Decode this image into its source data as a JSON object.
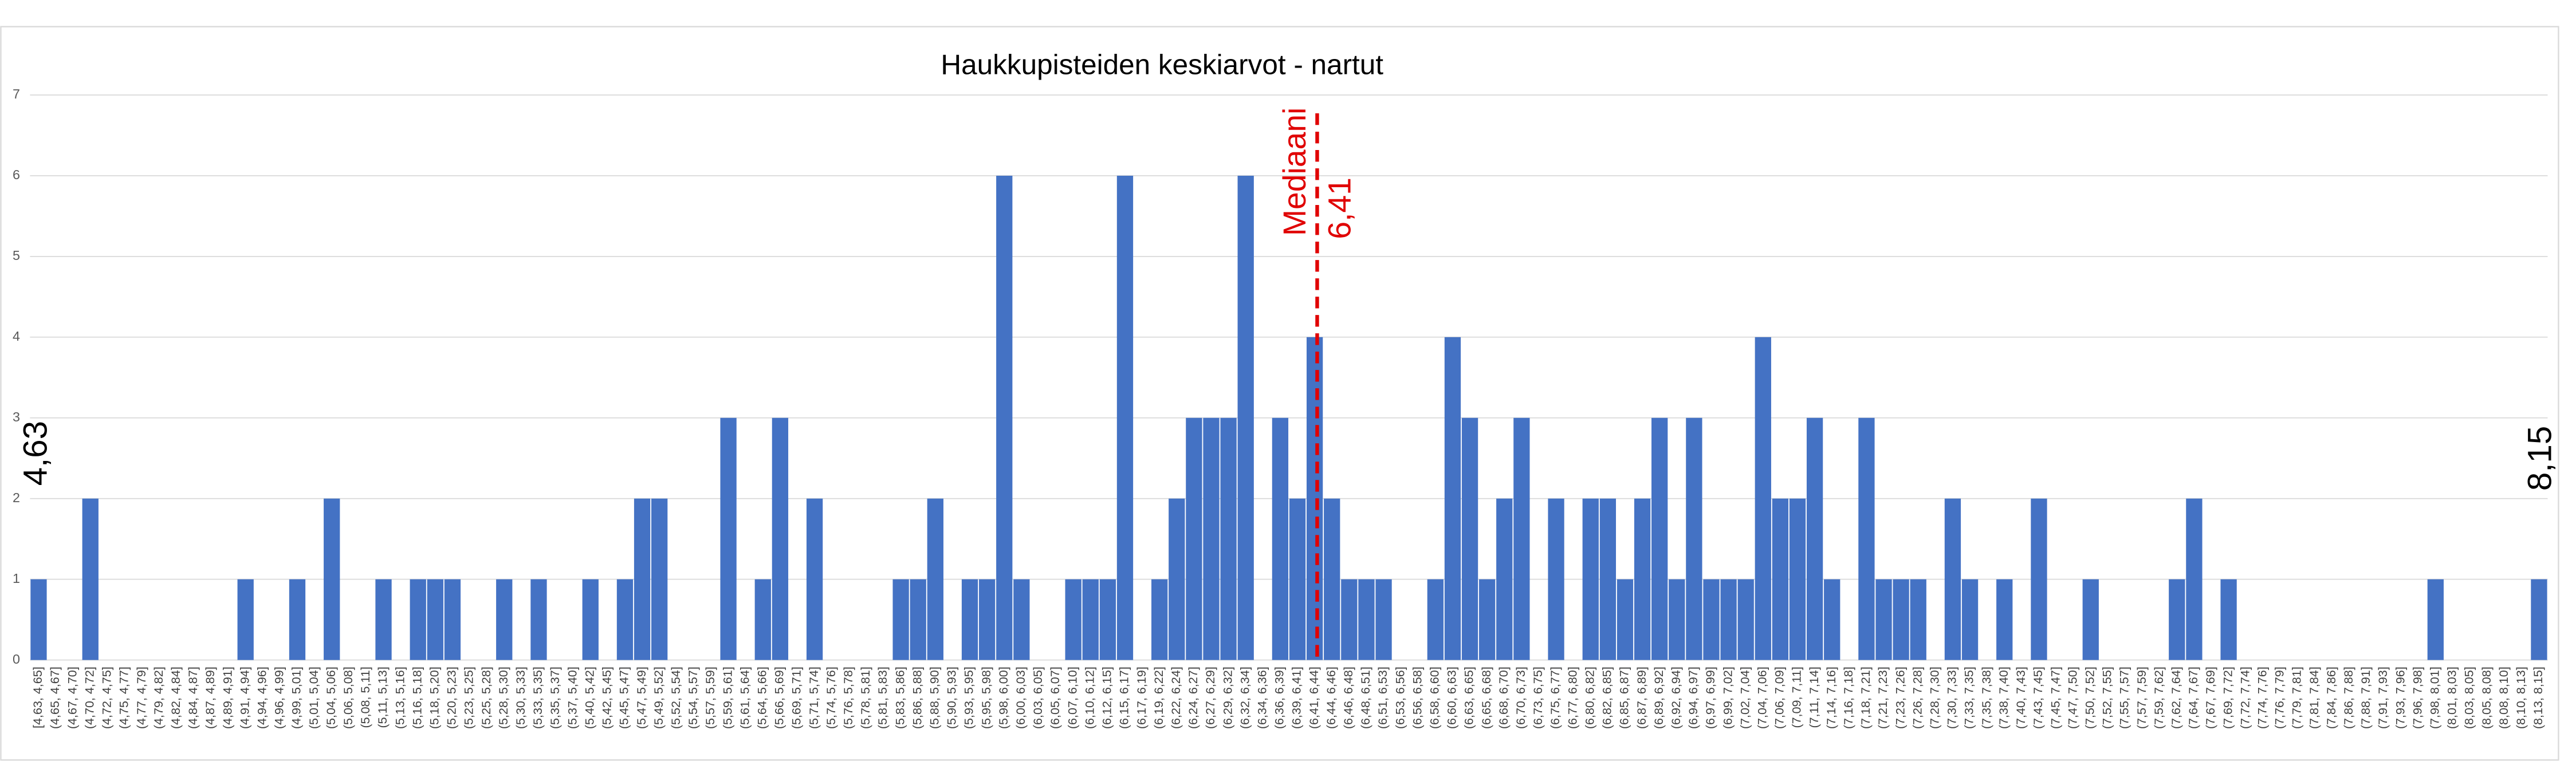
{
  "chart_data": {
    "type": "bar",
    "title": "Haukkupisteiden keskiarvot - nartut",
    "categories": [
      "[4,63, 4,65]",
      "(4,65, 4,67]",
      "(4,67, 4,70]",
      "(4,70, 4,72]",
      "(4,72, 4,75]",
      "(4,75, 4,77]",
      "(4,77, 4,79]",
      "(4,79, 4,82]",
      "(4,82, 4,84]",
      "(4,84, 4,87]",
      "(4,87, 4,89]",
      "(4,89, 4,91]",
      "(4,91, 4,94]",
      "(4,94, 4,96]",
      "(4,96, 4,99]",
      "(4,99, 5,01]",
      "(5,01, 5,04]",
      "(5,04, 5,06]",
      "(5,06, 5,08]",
      "(5,08, 5,11]",
      "(5,11, 5,13]",
      "(5,13, 5,16]",
      "(5,16, 5,18]",
      "(5,18, 5,20]",
      "(5,20, 5,23]",
      "(5,23, 5,25]",
      "(5,25, 5,28]",
      "(5,28, 5,30]",
      "(5,30, 5,33]",
      "(5,33, 5,35]",
      "(5,35, 5,37]",
      "(5,37, 5,40]",
      "(5,40, 5,42]",
      "(5,42, 5,45]",
      "(5,45, 5,47]",
      "(5,47, 5,49]",
      "(5,49, 5,52]",
      "(5,52, 5,54]",
      "(5,54, 5,57]",
      "(5,57, 5,59]",
      "(5,59, 5,61]",
      "(5,61, 5,64]",
      "(5,64, 5,66]",
      "(5,66, 5,69]",
      "(5,69, 5,71]",
      "(5,71, 5,74]",
      "(5,74, 5,76]",
      "(5,76, 5,78]",
      "(5,78, 5,81]",
      "(5,81, 5,83]",
      "(5,83, 5,86]",
      "(5,86, 5,88]",
      "(5,88, 5,90]",
      "(5,90, 5,93]",
      "(5,93, 5,95]",
      "(5,95, 5,98]",
      "(5,98, 6,00]",
      "(6,00, 6,03]",
      "(6,03, 6,05]",
      "(6,05, 6,07]",
      "(6,07, 6,10]",
      "(6,10, 6,12]",
      "(6,12, 6,15]",
      "(6,15, 6,17]",
      "(6,17, 6,19]",
      "(6,19, 6,22]",
      "(6,22, 6,24]",
      "(6,24, 6,27]",
      "(6,27, 6,29]",
      "(6,29, 6,32]",
      "(6,32, 6,34]",
      "(6,34, 6,36]",
      "(6,36, 6,39]",
      "(6,39, 6,41]",
      "(6,41, 6,44]",
      "(6,44, 6,46]",
      "(6,46, 6,48]",
      "(6,48, 6,51]",
      "(6,51, 6,53]",
      "(6,53, 6,56]",
      "(6,56, 6,58]",
      "(6,58, 6,60]",
      "(6,60, 6,63]",
      "(6,63, 6,65]",
      "(6,65, 6,68]",
      "(6,68, 6,70]",
      "(6,70, 6,73]",
      "(6,73, 6,75]",
      "(6,75, 6,77]",
      "(6,77, 6,80]",
      "(6,80, 6,82]",
      "(6,82, 6,85]",
      "(6,85, 6,87]",
      "(6,87, 6,89]",
      "(6,89, 6,92]",
      "(6,92, 6,94]",
      "(6,94, 6,97]",
      "(6,97, 6,99]",
      "(6,99, 7,02]",
      "(7,02, 7,04]",
      "(7,04, 7,06]",
      "(7,06, 7,09]",
      "(7,09, 7,11]",
      "(7,11, 7,14]",
      "(7,14, 7,16]",
      "(7,16, 7,18]",
      "(7,18, 7,21]",
      "(7,21, 7,23]",
      "(7,23, 7,26]",
      "(7,26, 7,28]",
      "(7,28, 7,30]",
      "(7,30, 7,33]",
      "(7,33, 7,35]",
      "(7,35, 7,38]",
      "(7,38, 7,40]",
      "(7,40, 7,43]",
      "(7,43, 7,45]",
      "(7,45, 7,47]",
      "(7,47, 7,50]",
      "(7,50, 7,52]",
      "(7,52, 7,55]",
      "(7,55, 7,57]",
      "(7,57, 7,59]",
      "(7,59, 7,62]",
      "(7,62, 7,64]",
      "(7,64, 7,67]",
      "(7,67, 7,69]",
      "(7,69, 7,72]",
      "(7,72, 7,74]",
      "(7,74, 7,76]",
      "(7,76, 7,79]",
      "(7,79, 7,81]",
      "(7,81, 7,84]",
      "(7,84, 7,86]",
      "(7,86, 7,88]",
      "(7,88, 7,91]",
      "(7,91, 7,93]",
      "(7,93, 7,96]",
      "(7,96, 7,98]",
      "(7,98, 8,01]",
      "(8,01, 8,03]",
      "(8,03, 8,05]",
      "(8,05, 8,08]",
      "(8,08, 8,10]",
      "(8,10, 8,13]",
      "(8,13, 8,15]"
    ],
    "values": [
      1,
      0,
      0,
      2,
      0,
      0,
      0,
      0,
      0,
      0,
      0,
      0,
      1,
      0,
      0,
      1,
      0,
      2,
      0,
      0,
      1,
      0,
      1,
      1,
      1,
      0,
      0,
      1,
      0,
      1,
      0,
      0,
      1,
      0,
      1,
      2,
      2,
      0,
      0,
      0,
      3,
      0,
      1,
      3,
      0,
      2,
      0,
      0,
      0,
      0,
      1,
      1,
      2,
      0,
      1,
      1,
      6,
      1,
      0,
      0,
      1,
      1,
      1,
      6,
      0,
      1,
      2,
      3,
      3,
      3,
      6,
      0,
      3,
      2,
      4,
      2,
      1,
      1,
      1,
      0,
      0,
      1,
      4,
      3,
      1,
      2,
      3,
      0,
      2,
      0,
      2,
      2,
      1,
      2,
      3,
      1,
      3,
      1,
      1,
      1,
      4,
      2,
      2,
      3,
      1,
      0,
      3,
      1,
      1,
      1,
      0,
      2,
      1,
      0,
      1,
      0,
      2,
      0,
      0,
      1,
      0,
      0,
      0,
      0,
      1,
      2,
      0,
      1,
      0,
      0,
      0,
      0,
      0,
      0,
      0,
      0,
      0,
      0,
      0,
      1,
      0,
      0,
      0,
      0,
      0,
      1
    ],
    "color": "#4472c4",
    "ylim": [
      0,
      7
    ],
    "yticks": [
      0,
      1,
      2,
      3,
      4,
      5,
      6,
      7
    ],
    "grid": true,
    "median_label": "Mediaani",
    "median_value": "6,41",
    "min_label": "4,63",
    "max_label": "8,15"
  }
}
